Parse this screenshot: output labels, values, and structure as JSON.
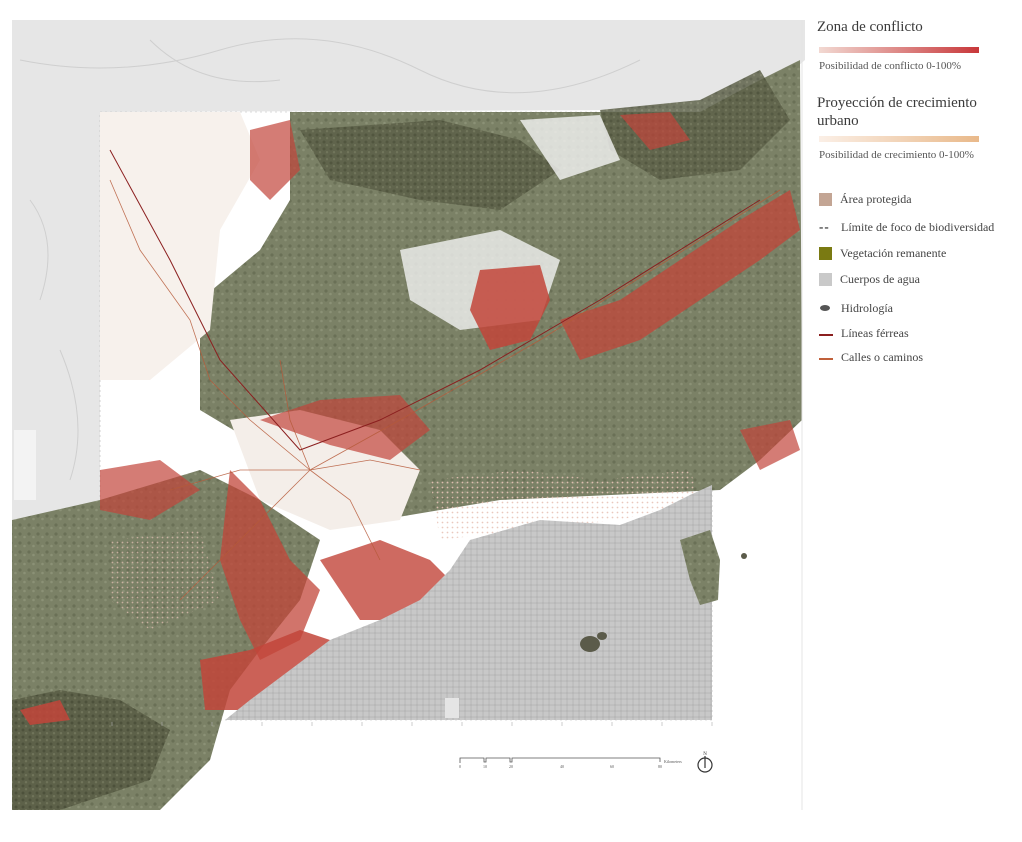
{
  "legend": {
    "conflict": {
      "title": "Zona de conflicto",
      "subtitle": "Posibilidad de conflicto 0-100%",
      "gradient_from": "#f2d9d2",
      "gradient_to": "#c8373a"
    },
    "growth": {
      "title_line1": "Proyección de crecimiento",
      "title_line2": "urbano",
      "subtitle": "Posibilidad de crecimiento 0-100%",
      "gradient_from": "#fbefe6",
      "gradient_to": "#e9b98a"
    },
    "items": [
      {
        "label": "Área protegida",
        "symbol": "square",
        "color": "#c3a594"
      },
      {
        "label": "Límite de foco de biodiversidad",
        "symbol": "dash",
        "color": "#222222"
      },
      {
        "label": "Vegetación remanente",
        "symbol": "square",
        "color": "#7a7a12"
      },
      {
        "label": "Cuerpos de agua",
        "symbol": "square",
        "color": "#c9c9c9"
      },
      {
        "label": "Hidrología",
        "symbol": "blob",
        "color": "#555555"
      },
      {
        "label": "Líneas férreas",
        "symbol": "line",
        "color": "#8b1f1f"
      },
      {
        "label": "Calles o caminos",
        "symbol": "line",
        "color": "#c0603a"
      }
    ]
  },
  "scalebar": {
    "ticks": [
      "0",
      "10",
      "20",
      "40",
      "60",
      "80"
    ],
    "unit": "Kilometers"
  },
  "north_arrow": {
    "label": "N",
    "icon": "north-arrow-icon"
  },
  "colors": {
    "terrain_light": "#e7e7e7",
    "vegetation": "#7a7f64",
    "conflict": "#c2453a",
    "water": "#c8c8c8"
  }
}
